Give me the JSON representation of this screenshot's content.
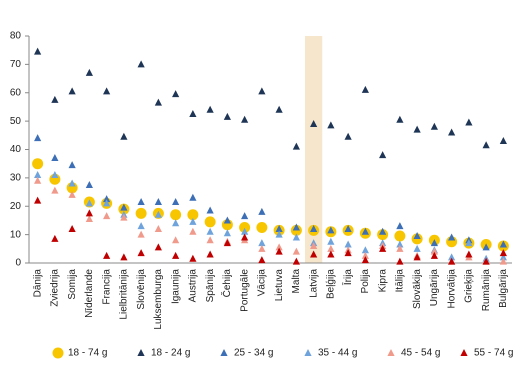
{
  "chart_data": {
    "type": "scatter",
    "categories": [
      "Dānija",
      "Zviedrija",
      "Somija",
      "Nīderlande",
      "Francija",
      "Lielbritānija",
      "Slovēnija",
      "Luksemburga",
      "Igaunija",
      "Austrija",
      "Spānija",
      "Čehija",
      "Portugāle",
      "Vācija",
      "Lietuva",
      "Malta",
      "Latvija",
      "Beļģija",
      "Īrija",
      "Polija",
      "Kipra",
      "Itālija",
      "Slovākija",
      "Ungārija",
      "Horvātija",
      "Grieķija",
      "Rumānija",
      "Bulgārija"
    ],
    "highlight_category": "Latvija",
    "highlight_color": "#f5e6cc",
    "ylim": [
      0,
      80
    ],
    "yticks": [
      0,
      10,
      20,
      30,
      40,
      50,
      60,
      70,
      80
    ],
    "grid": false,
    "legend": "bottom",
    "series": [
      {
        "name": "18 - 74 g",
        "color": "#f7c600",
        "marker": "circle",
        "values": [
          35,
          29.5,
          26.5,
          21.5,
          21,
          19,
          17.5,
          17.5,
          17,
          17,
          14.5,
          13.5,
          12.5,
          12.5,
          11.5,
          11.5,
          11.5,
          11,
          11.5,
          10.5,
          10,
          9.5,
          8.5,
          8,
          7.5,
          7,
          6.5,
          6
        ]
      },
      {
        "name": "18 - 24 g",
        "color": "#1f3556",
        "marker": "triangle",
        "values": [
          74.5,
          57.5,
          60.5,
          67,
          60.5,
          44.5,
          70,
          56.5,
          59.5,
          52.5,
          54,
          51.5,
          50.5,
          60.5,
          54,
          41,
          49,
          48.5,
          44.5,
          61,
          38,
          50.5,
          47,
          48,
          46,
          49.5,
          41.5,
          43
        ]
      },
      {
        "name": "25 - 34 g",
        "color": "#3d6fb6",
        "marker": "triangle",
        "values": [
          44,
          37,
          34.5,
          27.5,
          22.5,
          19.5,
          21.5,
          21.5,
          21.5,
          23,
          18.5,
          15,
          16.5,
          18,
          12,
          12.5,
          12,
          11.5,
          12,
          11,
          11,
          13,
          9.5,
          7,
          9,
          8,
          5.5,
          6.5
        ]
      },
      {
        "name": "35 - 44 g",
        "color": "#6fa3dc",
        "marker": "triangle",
        "values": [
          31,
          31,
          28,
          21,
          21,
          17,
          13,
          17,
          14,
          14.5,
          11,
          10.5,
          11,
          7,
          10,
          9,
          7,
          7.5,
          6.5,
          4.5,
          7,
          6.5,
          5,
          4.5,
          2,
          7,
          1.5,
          2
        ]
      },
      {
        "name": "45 - 54 g",
        "color": "#f09a8c",
        "marker": "triangle",
        "values": [
          29,
          25.5,
          24,
          15.5,
          16.5,
          16,
          10,
          12,
          8,
          11,
          8,
          7.5,
          8,
          5,
          5.5,
          4,
          6,
          5,
          4.5,
          2.5,
          6,
          5,
          2.5,
          4,
          0.5,
          2,
          0.5,
          0.5
        ]
      },
      {
        "name": "55 - 74 g",
        "color": "#c00000",
        "marker": "triangle",
        "values": [
          22,
          8.5,
          12,
          17.5,
          2.5,
          2,
          3.5,
          5.5,
          2.5,
          1.5,
          3,
          7,
          9,
          1,
          4,
          0.5,
          3,
          3,
          3.5,
          1,
          5,
          0.5,
          2,
          2.5,
          0.5,
          3,
          0.5,
          3.5
        ]
      }
    ]
  }
}
